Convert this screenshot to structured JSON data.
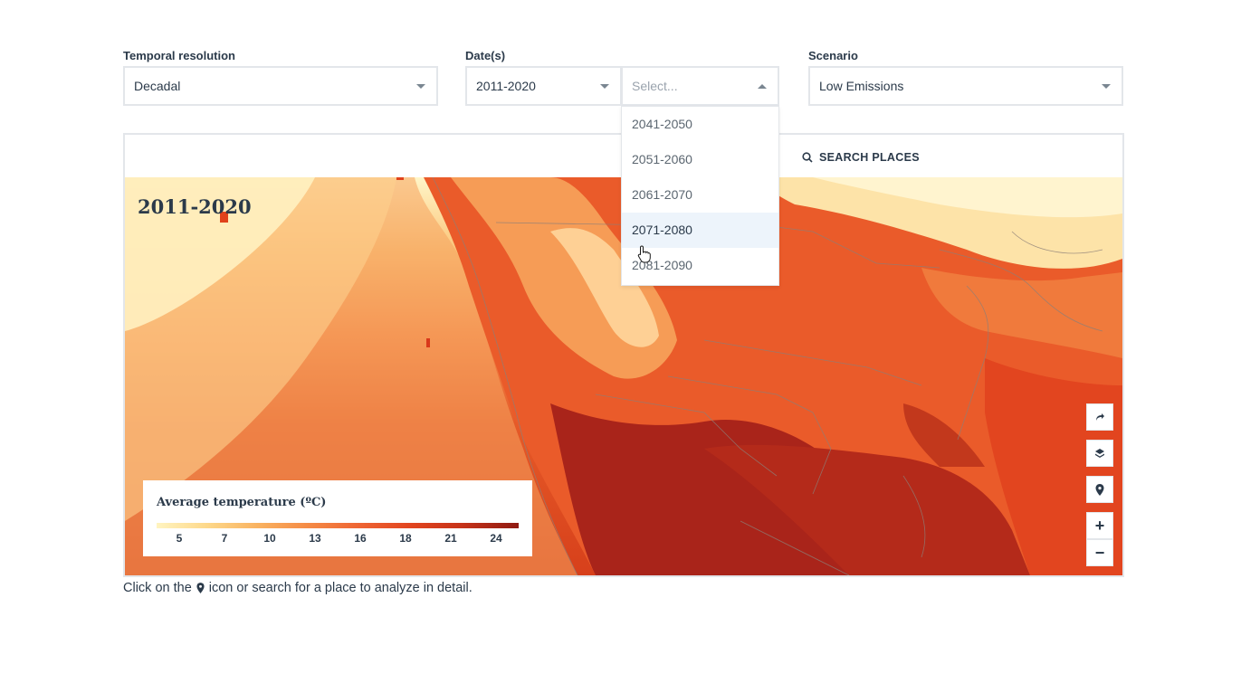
{
  "filters": {
    "temporal_resolution": {
      "label": "Temporal resolution",
      "value": "Decadal"
    },
    "dates": {
      "label": "Date(s)",
      "value": "2011-2020",
      "second_placeholder": "Select..."
    },
    "scenario": {
      "label": "Scenario",
      "value": "Low Emissions"
    }
  },
  "dropdown": {
    "options": [
      "2041-2050",
      "2051-2060",
      "2061-2070",
      "2071-2080",
      "2081-2090"
    ],
    "hovered": "2071-2080"
  },
  "map": {
    "search_label": "SEARCH PLACES",
    "overlay_title": "2011-2020",
    "controls": {
      "share_icon": "share-icon",
      "layers_icon": "layers-icon",
      "pin_icon": "pin-icon",
      "zoom_in": "+",
      "zoom_out": "−"
    }
  },
  "legend": {
    "title": "Average temperature (ºC)",
    "ticks": [
      "5",
      "7",
      "10",
      "13",
      "16",
      "18",
      "21",
      "24"
    ]
  },
  "help_text": {
    "before": "Click on the",
    "after": "icon or search for a place to analyze in detail."
  }
}
